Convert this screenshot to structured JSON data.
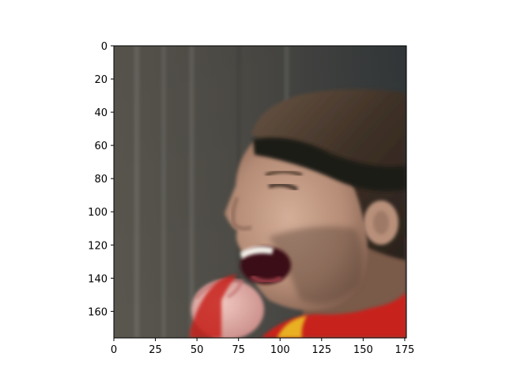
{
  "image": {
    "subject": "",
    "colors": {
      "background_grey": "#56544c",
      "background_dark": "#3a3a38",
      "hair": "#4a3a2a",
      "headband": "#1e1a18",
      "skin": "#c7a08a",
      "skin_shadow": "#8e6a58",
      "mouth": "#3b0f14",
      "teeth": "#f2efe8",
      "jersey_red": "#c8201e",
      "jersey_yellow": "#e8b020"
    }
  },
  "axes": {
    "x_ticks": [
      "0",
      "25",
      "50",
      "75",
      "100",
      "125",
      "150",
      "175"
    ],
    "y_ticks": [
      "0",
      "20",
      "40",
      "60",
      "80",
      "100",
      "120",
      "140",
      "160"
    ],
    "x_range": [
      0,
      176
    ],
    "y_range": [
      0,
      176
    ]
  }
}
